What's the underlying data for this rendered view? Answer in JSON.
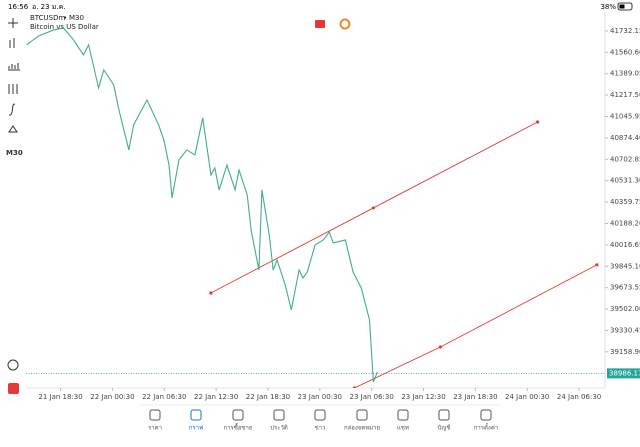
{
  "status": {
    "time": "16:56",
    "date": "อ. 23 ม.ค.",
    "battery": "38%"
  },
  "toolbar": {
    "timeframe": "M30"
  },
  "nav": [
    "ราคา",
    "กราฟ",
    "การซื้อขาย",
    "ประวัติ",
    "ข่าว",
    "กล่องจดหมาย",
    "แชท",
    "บัญชี",
    "การตั้งค่า"
  ],
  "chart_data": {
    "type": "line",
    "symbol": "BTCUSDm",
    "timeframe": "M30",
    "subtitle": "Bitcoin vs US Dollar",
    "xlim": [
      -8,
      126
    ],
    "ylim": [
      38869,
      41884
    ],
    "xticks": [
      {
        "value": 0,
        "label": "21 Jan 18:30"
      },
      {
        "value": 12,
        "label": "22 Jan 00:30"
      },
      {
        "value": 24,
        "label": "22 Jan 06:30"
      },
      {
        "value": 36,
        "label": "22 Jan 12:30"
      },
      {
        "value": 48,
        "label": "22 Jan 18:30"
      },
      {
        "value": 60,
        "label": "23 Jan 00:30"
      },
      {
        "value": 72,
        "label": "23 Jan 06:30"
      },
      {
        "value": 84,
        "label": "23 Jan 12:30"
      },
      {
        "value": 96,
        "label": "23 Jan 18:30"
      },
      {
        "value": 108,
        "label": "24 Jan 00:30"
      },
      {
        "value": 120,
        "label": "24 Jan 06:30"
      }
    ],
    "yticks": [
      41732.15,
      {
        "value": 41560.6,
        "label": "41560.60"
      },
      41389.05,
      {
        "value": 41217.5,
        "label": "41217.50"
      },
      41045.95,
      {
        "value": 40874.4,
        "label": "40874.40"
      },
      40702.85,
      {
        "value": 40531.3,
        "label": "40531.30"
      },
      40359.75,
      {
        "value": 40188.2,
        "label": "40188.20"
      },
      40016.65,
      {
        "value": 39845.1,
        "label": "39845.10"
      },
      39673.55,
      {
        "value": 39502,
        "label": "39502.00"
      },
      39330.45,
      {
        "value": 39158.9,
        "label": "39158.90"
      }
    ],
    "last_price": 38986.17,
    "last_price_color": "#26a69a",
    "series": [
      {
        "color": "#3fae8a",
        "x": [
          -7.9,
          -5.1,
          -1.6,
          0.7,
          3.0,
          5.3,
          6.5,
          8.8,
          10.0,
          12.3,
          13.5,
          15.8,
          16.9,
          20.0,
          22.7,
          23.9,
          25.1,
          25.8,
          27.4,
          29.2,
          31.1,
          32.9,
          34.8,
          35.7,
          36.7,
          38.5,
          40.4,
          41.3,
          43.2,
          44.1,
          45.9,
          46.6,
          48.3,
          49.2,
          50.1,
          52.0,
          53.4,
          55.2,
          56.1,
          57.1,
          58.9,
          60.8,
          62.2,
          63.1,
          65.9,
          67.7,
          69.6,
          71.5,
          72.4,
          73.3
        ],
        "values": [
          41620,
          41692,
          41740,
          41756,
          41660,
          41540,
          41620,
          41275,
          41420,
          41300,
          41100,
          40778,
          40978,
          41179,
          40978,
          40858,
          40657,
          40393,
          40698,
          40778,
          40738,
          41035,
          40577,
          40633,
          40457,
          40657,
          40457,
          40617,
          40417,
          40136,
          39815,
          40457,
          40096,
          39815,
          39896,
          39695,
          39495,
          39815,
          39751,
          39799,
          40016,
          40056,
          40120,
          40032,
          40056,
          39799,
          39671,
          39414,
          38917,
          38997
        ]
      }
    ],
    "trendlines": [
      {
        "color": "#e53935",
        "x": [
          34.8,
          72.4,
          110.4
        ],
        "values": [
          39631,
          40313,
          41002
        ]
      },
      {
        "color": "#e53935",
        "x": [
          68.0,
          87.9,
          124.1
        ],
        "values": [
          38869,
          39198,
          39856
        ]
      }
    ]
  }
}
